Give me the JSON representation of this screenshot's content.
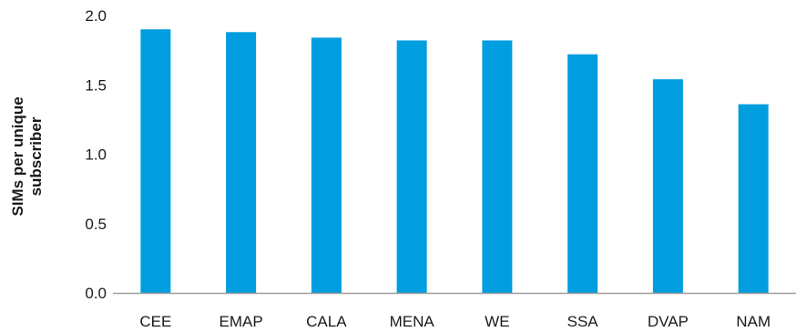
{
  "chart_data": {
    "type": "bar",
    "title": "",
    "xlabel": "",
    "ylabel_lines": [
      "SIMs per unique",
      "subscriber"
    ],
    "categories": [
      "CEE",
      "EMAP",
      "CALA",
      "MENA",
      "WE",
      "SSA",
      "DVAP",
      "NAM"
    ],
    "values": [
      1.9,
      1.88,
      1.84,
      1.82,
      1.82,
      1.72,
      1.54,
      1.36
    ],
    "ylim": [
      0,
      2.0
    ],
    "yticks": [
      "0.0",
      "0.5",
      "1.0",
      "1.5",
      "2.0"
    ],
    "grid": false,
    "legend": "none",
    "bar_color": "#009ddf",
    "axis_color": "#9e9e9e"
  }
}
